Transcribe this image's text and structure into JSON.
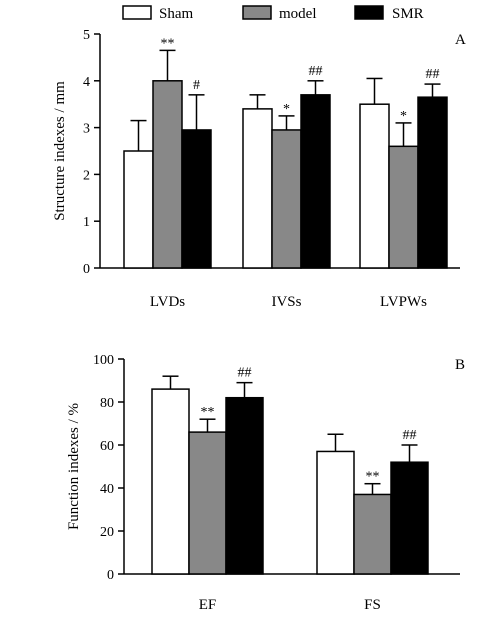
{
  "legend": {
    "entries": [
      {
        "name": "Sham",
        "color": "#ffffff"
      },
      {
        "name": "model",
        "color": "#888888"
      },
      {
        "name": "SMR",
        "color": "#000000"
      }
    ]
  },
  "chart_data": [
    {
      "type": "bar",
      "panel_label": "A",
      "ylabel": "Structure indexes / mm",
      "ylim": [
        0,
        5
      ],
      "yticks": [
        0,
        1,
        2,
        3,
        4,
        5
      ],
      "categories": [
        "LVDs",
        "IVSs",
        "LVPWs"
      ],
      "series": [
        {
          "name": "Sham",
          "color": "#ffffff",
          "values": [
            2.5,
            3.4,
            3.5
          ],
          "errors": [
            0.65,
            0.3,
            0.55
          ]
        },
        {
          "name": "model",
          "color": "#888888",
          "values": [
            4.0,
            2.95,
            2.6
          ],
          "errors": [
            0.65,
            0.3,
            0.5
          ]
        },
        {
          "name": "SMR",
          "color": "#000000",
          "values": [
            2.95,
            3.7,
            3.65
          ],
          "errors": [
            0.75,
            0.3,
            0.28
          ]
        }
      ],
      "annotations": [
        {
          "category": 0,
          "series": 1,
          "text": "**"
        },
        {
          "category": 0,
          "series": 2,
          "text": "#"
        },
        {
          "category": 1,
          "series": 1,
          "text": "*"
        },
        {
          "category": 1,
          "series": 2,
          "text": "##"
        },
        {
          "category": 2,
          "series": 1,
          "text": "*"
        },
        {
          "category": 2,
          "series": 2,
          "text": "##"
        }
      ]
    },
    {
      "type": "bar",
      "panel_label": "B",
      "ylabel": "Function indexes / %",
      "ylim": [
        0,
        100
      ],
      "yticks": [
        0,
        20,
        40,
        60,
        80,
        100
      ],
      "categories": [
        "EF",
        "FS"
      ],
      "series": [
        {
          "name": "Sham",
          "color": "#ffffff",
          "values": [
            86,
            57
          ],
          "errors": [
            6,
            8
          ]
        },
        {
          "name": "model",
          "color": "#888888",
          "values": [
            66,
            37
          ],
          "errors": [
            6,
            5
          ]
        },
        {
          "name": "SMR",
          "color": "#000000",
          "values": [
            82,
            52
          ],
          "errors": [
            7,
            8
          ]
        }
      ],
      "annotations": [
        {
          "category": 0,
          "series": 1,
          "text": "**"
        },
        {
          "category": 0,
          "series": 2,
          "text": "##"
        },
        {
          "category": 1,
          "series": 1,
          "text": "**"
        },
        {
          "category": 1,
          "series": 2,
          "text": "##"
        }
      ]
    }
  ]
}
